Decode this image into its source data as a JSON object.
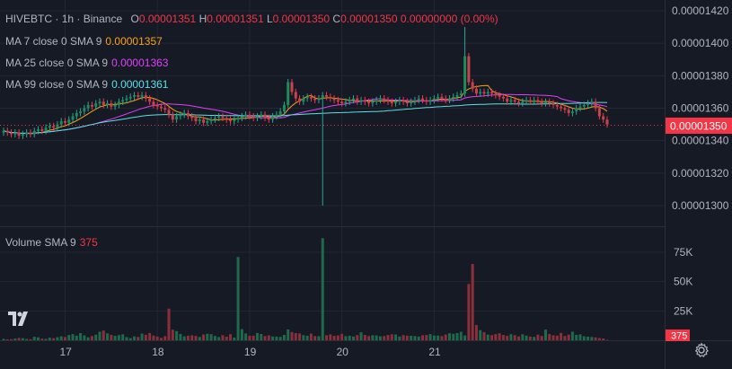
{
  "legend": {
    "symbol": "HIVEBTC",
    "interval": "1h",
    "exchange": "Binance",
    "open_label": "O",
    "open": "0.00001351",
    "high_label": "H",
    "high": "0.00001351",
    "low_label": "L",
    "low": "0.00001350",
    "close_label": "C",
    "close": "0.00001350",
    "change": "0.00000000",
    "change_pct": "(0.00%)"
  },
  "indicators": [
    {
      "label": "MA 7 close 0 SMA 9",
      "value": "0.00001357",
      "color": "#f7a21b"
    },
    {
      "label": "MA 25 close 0 SMA 9",
      "value": "0.00001363",
      "color": "#e040fb"
    },
    {
      "label": "MA 99 close 0 SMA 9",
      "value": "0.00001361",
      "color": "#5ce1e6"
    }
  ],
  "volume_legend": {
    "label": "Volume SMA 9",
    "value": "375"
  },
  "colors": {
    "up": "#26a69a",
    "up_fill": "#1f8a5a",
    "down": "#f23645",
    "down_fill": "#c2454f",
    "vol_up": "#1d6b4b",
    "vol_down": "#8b2f3a",
    "grid": "#232733",
    "text": "#b2b5be"
  },
  "chart_data": {
    "type": "candlestick",
    "price_axis": {
      "ticks": [
        "0.00001420",
        "0.00001400",
        "0.00001380",
        "0.00001360",
        "0.00001340",
        "0.00001320",
        "0.00001300"
      ],
      "last_price": "0.00001350"
    },
    "volume_axis": {
      "ticks": [
        "75K",
        "50K",
        "25K"
      ],
      "last_value": "375"
    },
    "time_axis": {
      "ticks": [
        "17",
        "18",
        "19",
        "20",
        "21"
      ]
    },
    "candles_per_day": 24,
    "first_day": 16,
    "first_hour": 8,
    "closes": [
      13.46,
      13.45,
      13.44,
      13.45,
      13.43,
      13.44,
      13.45,
      13.44,
      13.46,
      13.47,
      13.46,
      13.48,
      13.49,
      13.48,
      13.5,
      13.52,
      13.51,
      13.53,
      13.55,
      13.57,
      13.58,
      13.6,
      13.62,
      13.61,
      13.63,
      13.64,
      13.62,
      13.63,
      13.61,
      13.62,
      13.64,
      13.65,
      13.66,
      13.67,
      13.68,
      13.67,
      13.68,
      13.66,
      13.64,
      13.62,
      13.61,
      13.6,
      13.59,
      13.56,
      13.53,
      13.55,
      13.56,
      13.57,
      13.55,
      13.54,
      13.52,
      13.53,
      13.51,
      13.52,
      13.53,
      13.54,
      13.55,
      13.54,
      13.53,
      13.52,
      13.53,
      13.54,
      13.55,
      13.56,
      13.55,
      13.54,
      13.55,
      13.56,
      13.54,
      13.53,
      13.55,
      13.56,
      13.58,
      13.62,
      13.76,
      13.7,
      13.66,
      13.64,
      13.66,
      13.67,
      13.66,
      13.65,
      13.66,
      13.68,
      13.67,
      13.66,
      13.65,
      13.64,
      13.63,
      13.64,
      13.65,
      13.66,
      13.64,
      13.65,
      13.64,
      13.63,
      13.64,
      13.65,
      13.66,
      13.65,
      13.64,
      13.63,
      13.64,
      13.65,
      13.64,
      13.63,
      13.64,
      13.65,
      13.66,
      13.65,
      13.64,
      13.65,
      13.66,
      13.67,
      13.66,
      13.65,
      13.66,
      13.67,
      13.68,
      13.69,
      13.92,
      13.76,
      13.72,
      13.69,
      13.7,
      13.69,
      13.7,
      13.69,
      13.68,
      13.67,
      13.66,
      13.64,
      13.65,
      13.64,
      13.63,
      13.64,
      13.65,
      13.64,
      13.65,
      13.64,
      13.63,
      13.64,
      13.63,
      13.62,
      13.61,
      13.6,
      13.59,
      13.57,
      13.58,
      13.6,
      13.61,
      13.62,
      13.63,
      13.64,
      13.6,
      13.55,
      13.53,
      13.5
    ],
    "volumes": [
      1200,
      800,
      900,
      1500,
      2000,
      1800,
      1100,
      900,
      3000,
      2500,
      1400,
      1200,
      2200,
      1800,
      2600,
      3400,
      2800,
      4500,
      5200,
      3900,
      6100,
      4200,
      2500,
      3600,
      4800,
      7300,
      8300,
      5900,
      4600,
      3800,
      4400,
      5100,
      2700,
      1900,
      3300,
      2800,
      5700,
      4700,
      6200,
      4000,
      3200,
      2100,
      3500,
      27000,
      9000,
      7800,
      5400,
      3400,
      3900,
      4300,
      3700,
      2800,
      4900,
      5500,
      5200,
      3700,
      2800,
      4300,
      3000,
      5200,
      2300,
      71000,
      9500,
      5800,
      3800,
      3900,
      6200,
      5400,
      3600,
      4200,
      3300,
      3100,
      2900,
      4600,
      9200,
      7000,
      6100,
      5800,
      4400,
      3900,
      5700,
      3600,
      3500,
      87000,
      4300,
      5000,
      3800,
      4100,
      5500,
      3500,
      3900,
      3200,
      4400,
      6800,
      4600,
      3600,
      4300,
      4100,
      3400,
      3600,
      4500,
      5100,
      4900,
      3200,
      4400,
      3900,
      3800,
      3600,
      3200,
      4300,
      4500,
      5300,
      4100,
      4000,
      3500,
      4900,
      6000,
      5500,
      6100,
      7200,
      4100,
      48000,
      65000,
      13000,
      8700,
      6900,
      4800,
      4400,
      5300,
      6000,
      4600,
      3900,
      5200,
      4400,
      3300,
      5100,
      4000,
      3200,
      2900,
      4800,
      3700,
      9100,
      5400,
      4300,
      4000,
      6300,
      3700,
      4800,
      7300,
      4600,
      5000,
      3400,
      3100,
      2800,
      2500,
      1900,
      1500,
      375
    ]
  }
}
